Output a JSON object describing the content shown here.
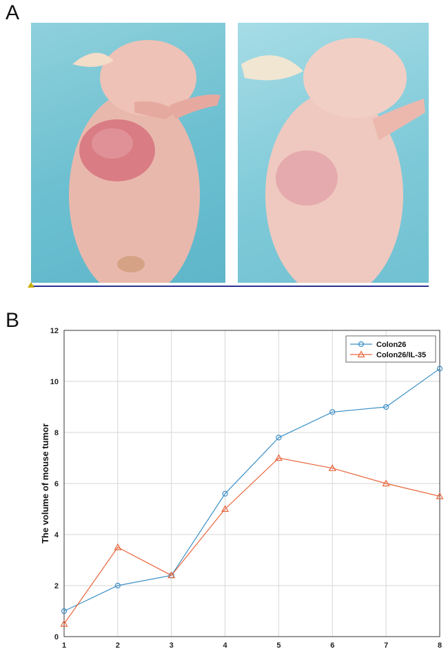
{
  "panels": {
    "a": "A",
    "b": "B"
  },
  "chart_data": {
    "type": "line",
    "title": "",
    "xlabel": "",
    "ylabel": "The volume of mouse tumor",
    "x": [
      1,
      2,
      3,
      4,
      5,
      6,
      7,
      8
    ],
    "xlim": [
      1,
      8
    ],
    "ylim": [
      0,
      12
    ],
    "yticks": [
      0,
      2,
      4,
      6,
      8,
      10,
      12
    ],
    "grid": true,
    "legend_position": "top-right",
    "series": [
      {
        "name": "Colon26",
        "values": [
          1.0,
          2.0,
          2.4,
          5.6,
          7.8,
          8.8,
          9.0,
          10.5
        ],
        "color": "#3a8fc7",
        "marker": "circle"
      },
      {
        "name": "Colon26/IL-35",
        "values": [
          0.5,
          3.5,
          2.4,
          5.0,
          7.0,
          6.6,
          6.0,
          5.5
        ],
        "color": "#e8643a",
        "marker": "triangle"
      }
    ]
  }
}
